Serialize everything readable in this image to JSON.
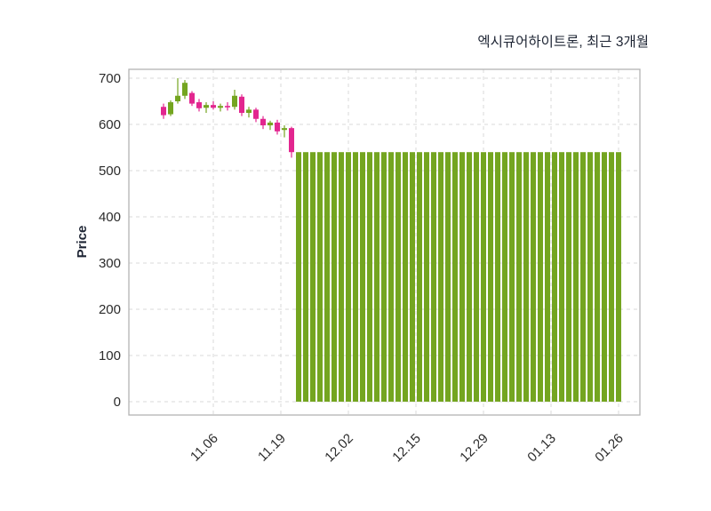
{
  "title": "엑시큐어하이트론, 최근 3개월",
  "chart_data": {
    "type": "candlestick",
    "title": "엑시큐어하이트론, 최근 3개월",
    "ylabel": "Price",
    "ylim": [
      -30,
      720
    ],
    "yticks": [
      0,
      100,
      200,
      300,
      400,
      500,
      600,
      700
    ],
    "xtick_labels": [
      "11.06",
      "11.19",
      "12.02",
      "12.15",
      "12.29",
      "01.13",
      "01.26"
    ],
    "grid": "dashed",
    "legend": "none",
    "colors": {
      "up": "#74a520",
      "down": "#e2268f",
      "flat_bar": "#74a520",
      "grid": "#d9d9d9",
      "frame": "#b3b3b3",
      "title_text": "#1d2433",
      "tick_text": "#2b2b2b"
    },
    "candles": [
      {
        "date": "10.26",
        "open": 638,
        "high": 645,
        "low": 612,
        "close": 620
      },
      {
        "date": "10.27",
        "open": 622,
        "high": 652,
        "low": 618,
        "close": 648
      },
      {
        "date": "10.30",
        "open": 650,
        "high": 700,
        "low": 645,
        "close": 662
      },
      {
        "date": "10.31",
        "open": 662,
        "high": 696,
        "low": 655,
        "close": 690
      },
      {
        "date": "11.01",
        "open": 668,
        "high": 672,
        "low": 640,
        "close": 645
      },
      {
        "date": "11.02",
        "open": 648,
        "high": 655,
        "low": 628,
        "close": 635
      },
      {
        "date": "11.03",
        "open": 636,
        "high": 648,
        "low": 625,
        "close": 642
      },
      {
        "date": "11.06",
        "open": 642,
        "high": 650,
        "low": 632,
        "close": 636
      },
      {
        "date": "11.07",
        "open": 636,
        "high": 645,
        "low": 628,
        "close": 640
      },
      {
        "date": "11.08",
        "open": 640,
        "high": 648,
        "low": 630,
        "close": 638
      },
      {
        "date": "11.09",
        "open": 638,
        "high": 675,
        "low": 632,
        "close": 662
      },
      {
        "date": "11.10",
        "open": 660,
        "high": 665,
        "low": 618,
        "close": 625
      },
      {
        "date": "11.13",
        "open": 625,
        "high": 638,
        "low": 615,
        "close": 632
      },
      {
        "date": "11.14",
        "open": 632,
        "high": 636,
        "low": 605,
        "close": 612
      },
      {
        "date": "11.15",
        "open": 612,
        "high": 618,
        "low": 590,
        "close": 598
      },
      {
        "date": "11.16",
        "open": 598,
        "high": 608,
        "low": 588,
        "close": 604
      },
      {
        "date": "11.17",
        "open": 604,
        "high": 610,
        "low": 578,
        "close": 585
      },
      {
        "date": "11.20",
        "open": 588,
        "high": 598,
        "low": 572,
        "close": 592
      },
      {
        "date": "11.21",
        "open": 592,
        "high": 595,
        "low": 528,
        "close": 540
      }
    ],
    "flat_bars": {
      "value": 540,
      "baseline": 0,
      "dates": [
        "11.22",
        "11.23",
        "11.24",
        "11.27",
        "11.28",
        "11.29",
        "11.30",
        "12.01",
        "12.04",
        "12.05",
        "12.06",
        "12.07",
        "12.08",
        "12.11",
        "12.12",
        "12.13",
        "12.14",
        "12.15",
        "12.18",
        "12.19",
        "12.20",
        "12.21",
        "12.22",
        "12.26",
        "12.27",
        "12.28",
        "12.29",
        "01.02",
        "01.03",
        "01.04",
        "01.05",
        "01.08",
        "01.09",
        "01.10",
        "01.11",
        "01.12",
        "01.15",
        "01.16",
        "01.17",
        "01.18",
        "01.19",
        "01.22",
        "01.23",
        "01.24",
        "01.25",
        "01.26"
      ]
    }
  }
}
